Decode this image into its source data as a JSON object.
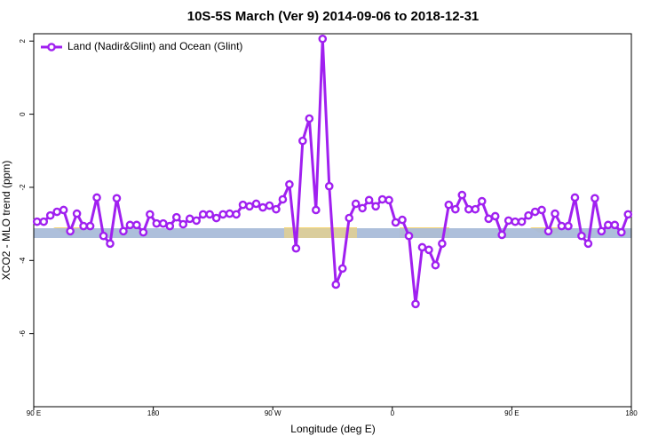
{
  "chart_data": {
    "type": "line",
    "title": "10S-5S March (Ver 9)   2014-09-06 to 2018-12-31",
    "x_label": "Longitude (deg E)",
    "y_label": "XCO2 - MLO trend (ppm)",
    "xlim": [
      90,
      540
    ],
    "xticks": [
      {
        "value": 90,
        "label": "90 E"
      },
      {
        "value": 180,
        "label": "180"
      },
      {
        "value": 270,
        "label": "90 W"
      },
      {
        "value": 360,
        "label": "0"
      },
      {
        "value": 450,
        "label": "90 E"
      },
      {
        "value": 540,
        "label": "180"
      }
    ],
    "ylim": [
      -8,
      2.2
    ],
    "yticks": [
      2,
      0,
      -2,
      -4,
      -6
    ],
    "legend": "top-left",
    "x": [
      92.5,
      97.5,
      102.5,
      107.5,
      112.5,
      117.5,
      122.5,
      127.5,
      132.5,
      137.5,
      142.5,
      147.5,
      152.5,
      157.5,
      162.5,
      167.5,
      172.5,
      177.5,
      182.5,
      187.5,
      192.5,
      197.5,
      202.5,
      207.5,
      212.5,
      217.5,
      222.5,
      227.5,
      232.5,
      237.5,
      242.5,
      247.5,
      252.5,
      257.5,
      262.5,
      267.5,
      272.5,
      277.5,
      282.5,
      287.5,
      292.5,
      297.5,
      302.5,
      307.5,
      312.5,
      317.5,
      322.5,
      327.5,
      332.5,
      337.5,
      342.5,
      347.5,
      352.5,
      357.5,
      362.5,
      367.5,
      372.5,
      377.5,
      382.5,
      387.5,
      392.5,
      397.5,
      402.5,
      407.5,
      412.5,
      417.5,
      422.5,
      427.5,
      432.5,
      437.5,
      442.5,
      447.5,
      452.5,
      457.5,
      462.5,
      467.5,
      472.5,
      477.5,
      482.5,
      487.5,
      492.5,
      497.5,
      502.5,
      507.5,
      512.5,
      517.5,
      522.5,
      527.5,
      532.5,
      537.5
    ],
    "series": [
      {
        "name": "Land (Nadir&Glint) and Ocean (Glint)",
        "color": "#a020f0",
        "values": [
          -2.94,
          -2.94,
          -2.77,
          -2.67,
          -2.62,
          -3.2,
          -2.72,
          -3.06,
          -3.06,
          -2.28,
          -3.33,
          -3.54,
          -2.3,
          -3.2,
          -3.03,
          -3.03,
          -3.23,
          -2.74,
          -2.99,
          -2.99,
          -3.06,
          -2.82,
          -3.01,
          -2.86,
          -2.91,
          -2.74,
          -2.74,
          -2.84,
          -2.74,
          -2.72,
          -2.74,
          -2.48,
          -2.52,
          -2.45,
          -2.55,
          -2.5,
          -2.6,
          -2.33,
          -1.92,
          -3.67,
          -0.73,
          -0.12,
          -2.62,
          2.06,
          -1.97,
          -4.66,
          -4.22,
          -2.84,
          -2.45,
          -2.57,
          -2.35,
          -2.52,
          -2.33,
          -2.35,
          -2.96,
          -2.89,
          -3.33,
          -5.19,
          -3.64,
          -3.71,
          -4.13,
          -3.54,
          -2.48,
          -2.6,
          -2.21,
          -2.6,
          -2.6,
          -2.38,
          -2.86,
          -2.79,
          -3.3,
          -2.91,
          -2.94,
          -2.94,
          -2.77,
          -2.67,
          -2.62,
          -3.2,
          -2.72,
          -3.06,
          -3.06,
          -2.28,
          -3.33,
          -3.54,
          -2.3,
          -3.2,
          -3.03,
          -3.03,
          -3.23,
          -2.74
        ]
      }
    ]
  }
}
